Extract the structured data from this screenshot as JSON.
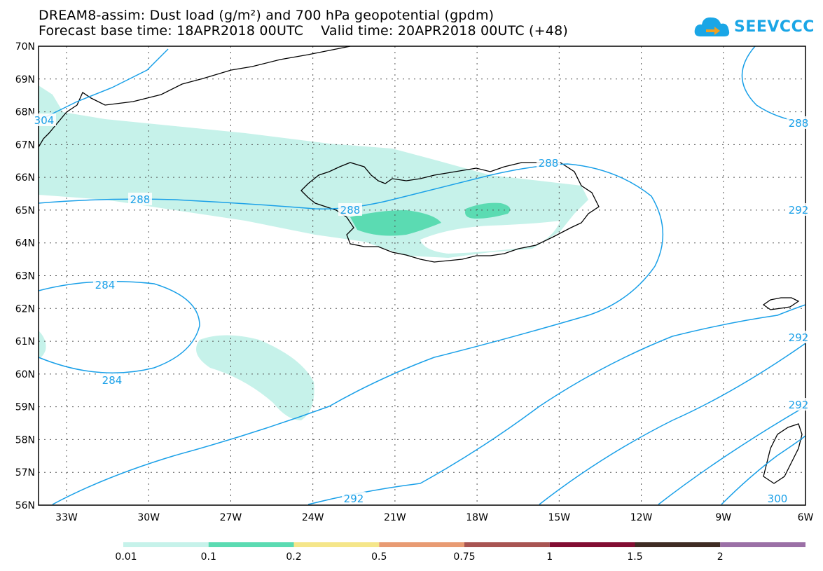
{
  "header": {
    "title_line1": "DREAM8-assim: Dust load (g/m²) and 700 hPa geopotential (gpdm)",
    "title_line2": "Forecast base time: 18APR2018 00UTC    Valid time: 20APR2018 00UTC (+48)"
  },
  "logo": {
    "text": "SEEVCCC"
  },
  "map": {
    "latitude_labels": [
      "70N",
      "69N",
      "68N",
      "67N",
      "66N",
      "65N",
      "64N",
      "63N",
      "62N",
      "61N",
      "60N",
      "59N",
      "58N",
      "57N",
      "56N"
    ],
    "longitude_labels": [
      "33W",
      "30W",
      "27W",
      "24W",
      "21W",
      "18W",
      "15W",
      "12W",
      "9W",
      "6W"
    ],
    "contour_labels": [
      "288",
      "288",
      "288",
      "284",
      "284",
      "292",
      "292",
      "292",
      "300",
      "304",
      "288",
      "292"
    ]
  },
  "legend": {
    "colors": [
      "#c6f2ea",
      "#5bdbb2",
      "#f5e68a",
      "#e89b73",
      "#a85452",
      "#820d32",
      "#3f2c24",
      "#9b70a6"
    ],
    "labels": [
      "0.01",
      "0.1",
      "0.2",
      "0.5",
      "0.75",
      "1",
      "1.5",
      "2"
    ]
  },
  "colors": {
    "contour": "#1aa0e8",
    "dust_low": "#c6f2ea",
    "dust_mid": "#5bdbb2",
    "coast": "#000000"
  }
}
